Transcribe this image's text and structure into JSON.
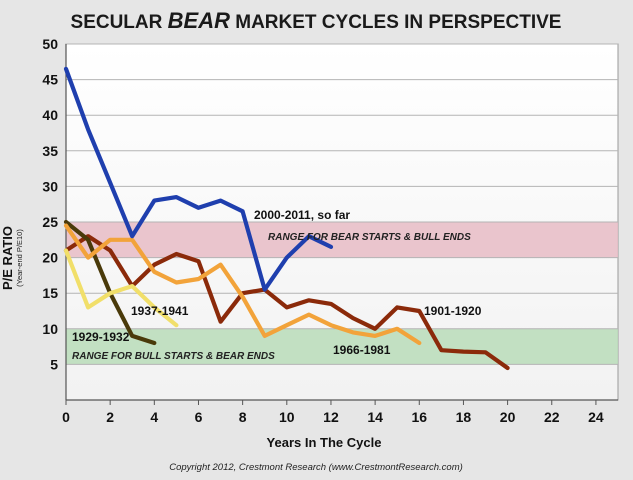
{
  "chart_data": {
    "type": "line",
    "title_parts": [
      "SECULAR ",
      "BEAR",
      " MARKET CYCLES IN PERSPECTIVE"
    ],
    "xlabel": "Years In The Cycle",
    "ylabel": "P/E RATIO",
    "ylabel_sub": "(Year-end P/E10)",
    "xlim": [
      0,
      25
    ],
    "ylim": [
      0,
      50
    ],
    "xticks": [
      "0",
      "2",
      "4",
      "6",
      "8",
      "10",
      "12",
      "14",
      "16",
      "18",
      "20",
      "22",
      "24"
    ],
    "yticks": [
      "5",
      "10",
      "15",
      "20",
      "25",
      "30",
      "35",
      "40",
      "45",
      "50"
    ],
    "grid": true,
    "bands": [
      {
        "label": "RANGE FOR BEAR STARTS & BULL ENDS",
        "y0": 20,
        "y1": 25,
        "color": "#e8bcc6"
      },
      {
        "label": "RANGE FOR BULL STARTS & BEAR ENDS",
        "y0": 5,
        "y1": 10,
        "color": "#b9dcb9"
      }
    ],
    "series": [
      {
        "name": "1901-1920",
        "color": "#8b2a0a",
        "x": [
          0,
          1,
          2,
          3,
          4,
          5,
          6,
          7,
          8,
          9,
          10,
          11,
          12,
          13,
          14,
          15,
          16,
          17,
          18,
          19,
          20
        ],
        "y": [
          21.0,
          23.0,
          21.0,
          16.0,
          19.0,
          20.5,
          19.5,
          11.0,
          15.0,
          15.5,
          13.0,
          14.0,
          13.5,
          11.5,
          10.0,
          13.0,
          12.5,
          7.0,
          6.8,
          6.7,
          4.5
        ]
      },
      {
        "name": "1929-1932",
        "color": "#4a3a0a",
        "x": [
          0,
          1,
          2,
          3,
          4
        ],
        "y": [
          25.0,
          22.5,
          15.0,
          9.0,
          8.0
        ]
      },
      {
        "name": "1937-1941",
        "color": "#f1df6a",
        "x": [
          0,
          1,
          2,
          3,
          4,
          5
        ],
        "y": [
          21.0,
          13.0,
          15.0,
          16.0,
          13.0,
          10.5
        ]
      },
      {
        "name": "1966-1981",
        "color": "#f2a33a",
        "x": [
          0,
          1,
          2,
          3,
          4,
          5,
          6,
          7,
          8,
          9,
          10,
          11,
          12,
          13,
          14,
          15,
          16
        ],
        "y": [
          24.5,
          20.0,
          22.5,
          22.5,
          18.0,
          16.5,
          17.0,
          19.0,
          14.5,
          9.0,
          10.5,
          12.0,
          10.5,
          9.5,
          9.0,
          10.0,
          8.0
        ]
      },
      {
        "name": "2000-2011, so far",
        "color": "#1f3fae",
        "x": [
          0,
          1,
          2,
          3,
          4,
          5,
          6,
          7,
          8,
          9,
          10,
          11,
          12
        ],
        "y": [
          46.5,
          38.0,
          30.5,
          23.0,
          28.0,
          28.5,
          27.0,
          28.0,
          26.5,
          15.5,
          20.0,
          23.0,
          21.5
        ]
      }
    ],
    "annotations": {
      "credit": "Copyright 2012, Crestmont Research (www.CrestmontResearch.com)"
    }
  }
}
